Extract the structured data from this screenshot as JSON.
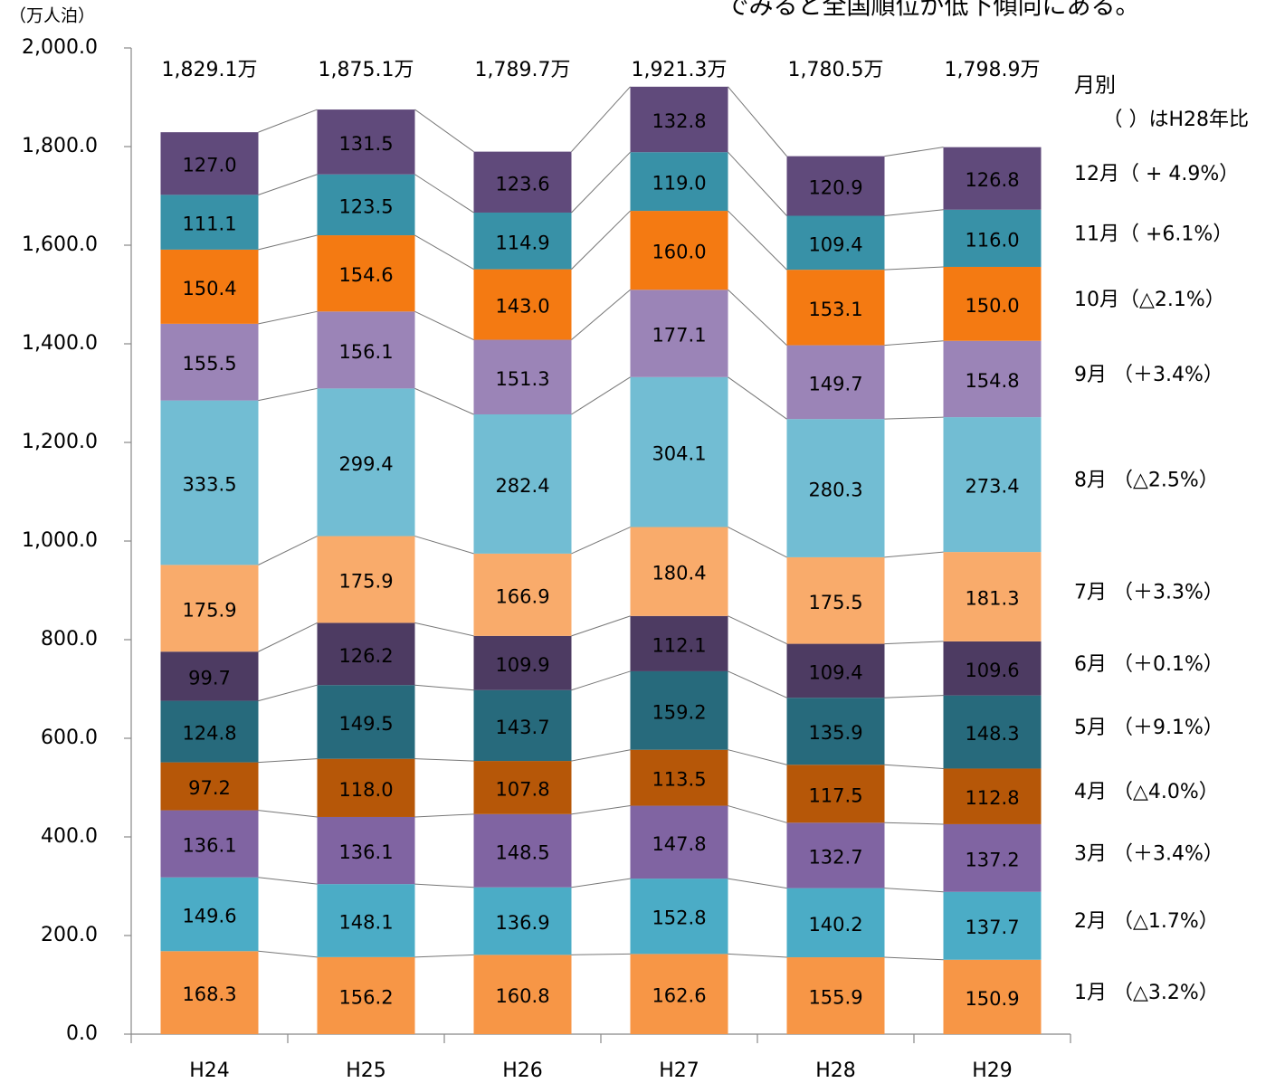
{
  "chart_data": {
    "type": "stacked-bar",
    "caption": "でみると全国順位が低下傾向にある。",
    "y_axis_unit": "（万人泊）",
    "legend_title": "月別",
    "legend_note": "（ ）はH28年比",
    "categories": [
      "H24",
      "H25",
      "H26",
      "H27",
      "H28",
      "H29"
    ],
    "totals": {
      "values": [
        1829.1,
        1875.1,
        1789.7,
        1921.3,
        1780.5,
        1798.9
      ],
      "value_labels": [
        "1,829.1万",
        "1,875.1万",
        "1,789.7万",
        "1,921.3万",
        "1,780.5万",
        "1,798.9万"
      ]
    },
    "series": [
      {
        "name": "1月 （△3.2%）",
        "color": "#f79646",
        "values": [
          168.3,
          156.2,
          160.8,
          162.6,
          155.9,
          150.9
        ],
        "value_labels": [
          "168.3",
          "156.2",
          "160.8",
          "162.6",
          "155.9",
          "150.9"
        ]
      },
      {
        "name": "2月 （△1.7%）",
        "color": "#4bacc6",
        "values": [
          149.6,
          148.1,
          136.9,
          152.8,
          140.2,
          137.7
        ],
        "value_labels": [
          "149.6",
          "148.1",
          "136.9",
          "152.8",
          "140.2",
          "137.7"
        ]
      },
      {
        "name": "3月 （＋3.4%）",
        "color": "#8064a2",
        "values": [
          136.1,
          136.1,
          148.5,
          147.8,
          132.7,
          137.2
        ],
        "value_labels": [
          "136.1",
          "136.1",
          "148.5",
          "147.8",
          "132.7",
          "137.2"
        ]
      },
      {
        "name": "4月 （△4.0%）",
        "color": "#b65708",
        "values": [
          97.2,
          118.0,
          107.8,
          113.5,
          117.5,
          112.8
        ],
        "value_labels": [
          "97.2",
          "118.0",
          "107.8",
          "113.5",
          "117.5",
          "112.8"
        ]
      },
      {
        "name": "5月 （＋9.1%）",
        "color": "#276a7c",
        "values": [
          124.8,
          149.5,
          143.7,
          159.2,
          135.9,
          148.3
        ],
        "value_labels": [
          "124.8",
          "149.5",
          "143.7",
          "159.2",
          "135.9",
          "148.3"
        ]
      },
      {
        "name": "6月 （＋0.1%）",
        "color": "#4d3b62",
        "values": [
          99.7,
          126.2,
          109.9,
          112.1,
          109.4,
          109.6
        ],
        "value_labels": [
          "99.7",
          "126.2",
          "109.9",
          "112.1",
          "109.4",
          "109.6"
        ]
      },
      {
        "name": "7月 （＋3.3%）",
        "color": "#f9ab6b",
        "values": [
          175.9,
          175.9,
          166.9,
          180.4,
          175.5,
          181.3
        ],
        "value_labels": [
          "175.9",
          "175.9",
          "166.9",
          "180.4",
          "175.5",
          "181.3"
        ]
      },
      {
        "name": "8月 （△2.5%）",
        "color": "#72bdd3",
        "values": [
          333.5,
          299.4,
          282.4,
          304.1,
          280.3,
          273.4
        ],
        "value_labels": [
          "333.5",
          "299.4",
          "282.4",
          "304.1",
          "280.3",
          "273.4"
        ]
      },
      {
        "name": "9月 （＋3.4%）",
        "color": "#9b84b7",
        "values": [
          155.5,
          156.1,
          151.3,
          177.1,
          149.7,
          154.8
        ],
        "value_labels": [
          "155.5",
          "156.1",
          "151.3",
          "177.1",
          "149.7",
          "154.8"
        ]
      },
      {
        "name": "10月（△2.1%）",
        "color": "#f47a12",
        "values": [
          150.4,
          154.6,
          143.0,
          160.0,
          153.1,
          150.0
        ],
        "value_labels": [
          "150.4",
          "154.6",
          "143.0",
          "160.0",
          "153.1",
          "150.0"
        ]
      },
      {
        "name": "11月（ +6.1%）",
        "color": "#3891a7",
        "values": [
          111.1,
          123.5,
          114.9,
          119.0,
          109.4,
          116.0
        ],
        "value_labels": [
          "111.1",
          "123.5",
          "114.9",
          "119.0",
          "109.4",
          "116.0"
        ]
      },
      {
        "name": "12月（ + 4.9%）",
        "color": "#604a7b",
        "values": [
          127.0,
          131.5,
          123.6,
          132.8,
          120.9,
          126.8
        ],
        "value_labels": [
          "127.0",
          "131.5",
          "123.6",
          "132.8",
          "120.9",
          "126.8"
        ]
      }
    ],
    "ylim": [
      0,
      2000
    ],
    "yticks": [
      {
        "value": 0,
        "label": "0.0"
      },
      {
        "value": 200,
        "label": "200.0"
      },
      {
        "value": 400,
        "label": "400.0"
      },
      {
        "value": 600,
        "label": "600.0"
      },
      {
        "value": 800,
        "label": "800.0"
      },
      {
        "value": 1000,
        "label": "1,000.0"
      },
      {
        "value": 1200,
        "label": "1,200.0"
      },
      {
        "value": 1400,
        "label": "1,400.0"
      },
      {
        "value": 1600,
        "label": "1,600.0"
      },
      {
        "value": 1800,
        "label": "1,800.0"
      },
      {
        "value": 2000,
        "label": "2,000.0"
      }
    ]
  }
}
